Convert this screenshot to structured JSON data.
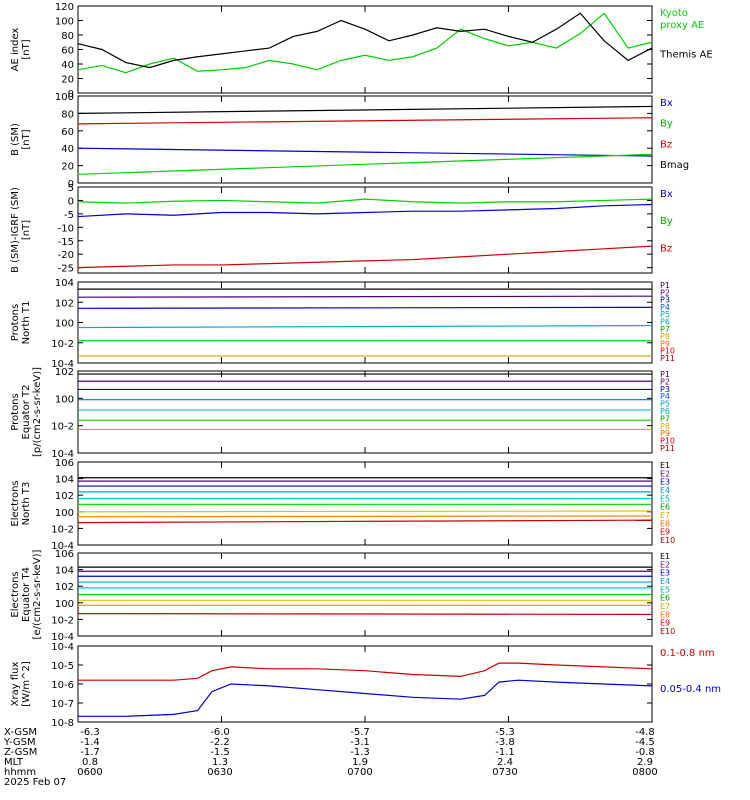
{
  "chart_data": [
    {
      "type": "line",
      "ylabel": "AE index\n[nT]",
      "ylim": [
        0,
        120
      ],
      "yticks": [
        "0",
        "20",
        "40",
        "60",
        "80",
        "100",
        "120"
      ],
      "legend": [
        "Kyoto\nproxy AE",
        "Themis AE"
      ],
      "legend_colors": [
        "#00d000",
        "#000000"
      ],
      "x": [
        0,
        5,
        10,
        15,
        20,
        25,
        30,
        35,
        40,
        45,
        50,
        55,
        60,
        65,
        70,
        75,
        80,
        85,
        90,
        95,
        100,
        105,
        110,
        115,
        120
      ],
      "series": [
        {
          "color": "#00d000",
          "values": [
            32,
            38,
            28,
            40,
            48,
            30,
            32,
            35,
            45,
            40,
            32,
            45,
            52,
            45,
            50,
            62,
            88,
            75,
            65,
            70,
            62,
            82,
            110,
            62,
            70
          ]
        },
        {
          "color": "#000000",
          "values": [
            68,
            60,
            42,
            35,
            45,
            50,
            54,
            58,
            62,
            78,
            85,
            100,
            88,
            72,
            80,
            90,
            85,
            88,
            78,
            70,
            88,
            110,
            72,
            45,
            62
          ]
        }
      ]
    },
    {
      "type": "line",
      "ylabel": "B (SM)\n[nT]",
      "ylim": [
        0,
        100
      ],
      "yticks": [
        "0",
        "20",
        "40",
        "60",
        "80",
        "100"
      ],
      "legend": [
        "Bx",
        "By",
        "Bz",
        "Bmag"
      ],
      "legend_colors": [
        "#0000cc",
        "#00aa00",
        "#cc0000",
        "#000000"
      ],
      "x": [
        0,
        120
      ],
      "series": [
        {
          "color": "#000000",
          "values": [
            80,
            88
          ]
        },
        {
          "color": "#cc0000",
          "values": [
            68,
            75
          ]
        },
        {
          "color": "#0000cc",
          "values": [
            40,
            31
          ]
        },
        {
          "color": "#00d000",
          "values": [
            10,
            33
          ]
        }
      ]
    },
    {
      "type": "line",
      "ylabel": "B (SM)-IGRF (SM)\n[nT]",
      "ylim": [
        -27,
        5
      ],
      "yticks": [
        "-25",
        "-20",
        "-15",
        "-10",
        "-5",
        "0",
        "5"
      ],
      "yticks_values": [
        -25,
        -20,
        -15,
        -10,
        -5,
        0,
        5
      ],
      "legend": [
        "Bx",
        "By",
        "Bz"
      ],
      "legend_colors": [
        "#0000cc",
        "#00aa00",
        "#cc0000"
      ],
      "x": [
        0,
        10,
        20,
        30,
        40,
        50,
        60,
        70,
        80,
        90,
        100,
        110,
        120
      ],
      "series": [
        {
          "color": "#00d000",
          "values": [
            -0.5,
            -1,
            -0.3,
            0,
            -0.5,
            -1,
            0.5,
            -0.5,
            -1,
            -0.5,
            -0.5,
            0,
            0.5
          ]
        },
        {
          "color": "#0000cc",
          "values": [
            -6,
            -5,
            -5.5,
            -4.5,
            -4.5,
            -5,
            -4.5,
            -4,
            -4,
            -3.5,
            -3,
            -2,
            -1.5
          ]
        },
        {
          "color": "#cc0000",
          "values": [
            -25,
            -24.5,
            -24,
            -24,
            -23.5,
            -23,
            -22.5,
            -22,
            -21,
            -20,
            -19,
            -18,
            -17
          ]
        }
      ]
    },
    {
      "type": "line",
      "log": true,
      "ylabel": "Protons\nNorth T1",
      "ylim": [
        -4,
        4
      ],
      "yticks": [
        "10-4",
        "10-2",
        "100",
        "102",
        "104"
      ],
      "legend": [
        "P1",
        "P2",
        "P3",
        "P4",
        "P5",
        "P6",
        "P7",
        "P8",
        "P9",
        "P10",
        "P11"
      ],
      "legend_colors": [
        "#330033",
        "#660066",
        "#000099",
        "#0055cc",
        "#0099cc",
        "#00aaaa",
        "#009900",
        "#ccaa00",
        "#ff6600",
        "#cc0000",
        "#990000"
      ],
      "x": [
        0,
        120
      ],
      "series": [
        {
          "color": "#000000",
          "values": [
            3.3,
            3.3
          ]
        },
        {
          "color": "#4b0082",
          "values": [
            2.5,
            2.6
          ]
        },
        {
          "color": "#0000cc",
          "values": [
            1.4,
            1.5
          ]
        },
        {
          "color": "#00aacc",
          "values": [
            -0.5,
            -0.3
          ]
        },
        {
          "color": "#00d000",
          "values": [
            -1.8,
            -1.8
          ]
        },
        {
          "color": "#ccaa00",
          "values": [
            -3.3,
            -3.3
          ]
        }
      ]
    },
    {
      "type": "line",
      "log": true,
      "ylabel": "Protons\nEquator T2\n[p/(cm2-s-sr-keV)]",
      "ylim": [
        -6,
        2
      ],
      "yticks": [
        "10-4",
        "10-2",
        "100",
        "102"
      ],
      "legend": [
        "P1",
        "P2",
        "P3",
        "P4",
        "P5",
        "P6",
        "P7",
        "P8",
        "P9",
        "P10",
        "P11"
      ],
      "legend_colors": [
        "#330033",
        "#660066",
        "#000099",
        "#0055cc",
        "#0099cc",
        "#00aaaa",
        "#009900",
        "#ccaa00",
        "#ff6600",
        "#cc0000",
        "#990000"
      ],
      "x": [
        0,
        120
      ],
      "series": [
        {
          "color": "#000000",
          "values": [
            1.7,
            1.7
          ]
        },
        {
          "color": "#4b0082",
          "values": [
            1.0,
            1.0
          ]
        },
        {
          "color": "#0000cc",
          "values": [
            0.2,
            0.2
          ]
        },
        {
          "color": "#0077cc",
          "values": [
            -0.8,
            -0.8
          ]
        },
        {
          "color": "#00cccc",
          "values": [
            -1.8,
            -1.8
          ]
        },
        {
          "color": "#00d000",
          "values": [
            -2.8,
            -2.8
          ]
        },
        {
          "color": "#ccaa00",
          "values": [
            -3.7,
            -3.7
          ]
        }
      ]
    },
    {
      "type": "line",
      "log": true,
      "ylabel": "Electrons\nNorth T3",
      "ylim": [
        -4,
        6
      ],
      "yticks": [
        "10-4",
        "10-2",
        "100",
        "102",
        "104",
        "106"
      ],
      "legend": [
        "E1",
        "E2",
        "E3",
        "E4",
        "E5",
        "E6",
        "E7",
        "E8",
        "E9",
        "E10"
      ],
      "legend_colors": [
        "#000000",
        "#660066",
        "#0000cc",
        "#0099cc",
        "#00aaaa",
        "#009900",
        "#ccaa00",
        "#ff6600",
        "#cc0000",
        "#990000"
      ],
      "x": [
        0,
        120
      ],
      "series": [
        {
          "color": "#000000",
          "values": [
            4.1,
            4.1
          ]
        },
        {
          "color": "#4b0082",
          "values": [
            3.7,
            3.7
          ]
        },
        {
          "color": "#0000cc",
          "values": [
            3.1,
            3.1
          ]
        },
        {
          "color": "#00aacc",
          "values": [
            2.4,
            2.4
          ]
        },
        {
          "color": "#00cccc",
          "values": [
            1.6,
            1.6
          ]
        },
        {
          "color": "#00d000",
          "values": [
            0.9,
            0.9
          ]
        },
        {
          "color": "#cccc00",
          "values": [
            0,
            0.1
          ]
        },
        {
          "color": "#ff8800",
          "values": [
            -0.6,
            -0.5
          ]
        },
        {
          "color": "#cc0000",
          "values": [
            -1.3,
            -1.0
          ]
        }
      ]
    },
    {
      "type": "line",
      "log": true,
      "ylabel": "Electrons\nEquator T4\n[e/(cm2-s-sr-keV)]",
      "ylim": [
        -4,
        6
      ],
      "yticks": [
        "10-4",
        "10-2",
        "100",
        "102",
        "104",
        "106"
      ],
      "legend": [
        "E1",
        "E2",
        "E3",
        "E4",
        "E5",
        "E6",
        "E7",
        "E8",
        "E9",
        "E10"
      ],
      "legend_colors": [
        "#000000",
        "#660066",
        "#0000cc",
        "#0099cc",
        "#00aaaa",
        "#009900",
        "#ccaa00",
        "#ff6600",
        "#cc0000",
        "#990000"
      ],
      "x": [
        0,
        120
      ],
      "series": [
        {
          "color": "#000000",
          "values": [
            4.3,
            4.3
          ]
        },
        {
          "color": "#4b0082",
          "values": [
            3.8,
            3.8
          ]
        },
        {
          "color": "#0000cc",
          "values": [
            3.2,
            3.2
          ]
        },
        {
          "color": "#00aacc",
          "values": [
            2.5,
            2.5
          ]
        },
        {
          "color": "#00cccc",
          "values": [
            1.8,
            1.8
          ]
        },
        {
          "color": "#00d000",
          "values": [
            1.0,
            1.0
          ]
        },
        {
          "color": "#cccc00",
          "values": [
            0.3,
            0.3
          ]
        },
        {
          "color": "#ff8800",
          "values": [
            -0.3,
            -0.3
          ]
        },
        {
          "color": "#cc0000",
          "values": [
            -1.3,
            -1.4
          ]
        }
      ]
    },
    {
      "type": "line",
      "log": true,
      "ylabel": "Xray flux\n[W/m^2]",
      "ylim": [
        -8,
        -4
      ],
      "yticks": [
        "10-8",
        "10-7",
        "10-6",
        "10-5",
        "10-4"
      ],
      "legend": [
        "0.1-0.8 nm",
        "0.05-0.4 nm"
      ],
      "legend_colors": [
        "#cc0000",
        "#0000cc"
      ],
      "x": [
        0,
        10,
        20,
        25,
        28,
        32,
        40,
        50,
        60,
        70,
        80,
        85,
        88,
        92,
        100,
        110,
        120
      ],
      "series": [
        {
          "color": "#cc0000",
          "values": [
            -5.8,
            -5.8,
            -5.8,
            -5.7,
            -5.3,
            -5.1,
            -5.2,
            -5.2,
            -5.3,
            -5.5,
            -5.6,
            -5.3,
            -4.9,
            -4.9,
            -5.0,
            -5.1,
            -5.2
          ]
        },
        {
          "color": "#0000cc",
          "values": [
            -7.7,
            -7.7,
            -7.6,
            -7.4,
            -6.4,
            -6.0,
            -6.1,
            -6.3,
            -6.5,
            -6.7,
            -6.8,
            -6.6,
            -5.9,
            -5.8,
            -5.9,
            -6.0,
            -6.1
          ]
        }
      ]
    }
  ],
  "footer": {
    "rows": [
      {
        "label": "X-GSM",
        "values": [
          "-6.3",
          "-6.0",
          "-5.7",
          "-5.3",
          "-4.8"
        ]
      },
      {
        "label": "Y-GSM",
        "values": [
          "-1.4",
          "-2.2",
          "-3.1",
          "-3.8",
          "-4.5"
        ]
      },
      {
        "label": "Z-GSM",
        "values": [
          "-1.7",
          "-1.5",
          "-1.3",
          "-1.1",
          "-0.8"
        ]
      },
      {
        "label": "MLT",
        "values": [
          "0.8",
          "1.3",
          "1.9",
          "2.4",
          "2.9"
        ]
      },
      {
        "label": "hhmm",
        "values": [
          "0600",
          "0630",
          "0700",
          "0730",
          "0800"
        ]
      }
    ],
    "date": "2025 Feb 07"
  }
}
